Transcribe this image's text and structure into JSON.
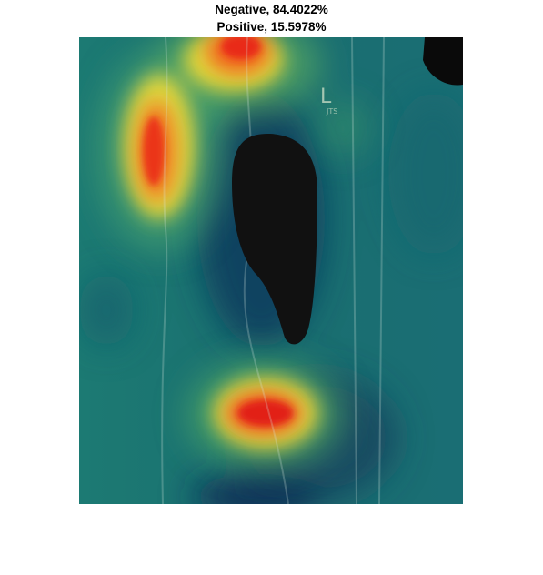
{
  "figure": {
    "title_line1": "Negative, 84.4022%",
    "title_line2": "Positive, 15.5978%",
    "image_description_marker": "L",
    "image_marker_sub": "JTS",
    "colormap": [
      "#440154",
      "#1f6b6e",
      "#20a386",
      "#fde725",
      "#ff0000"
    ]
  }
}
